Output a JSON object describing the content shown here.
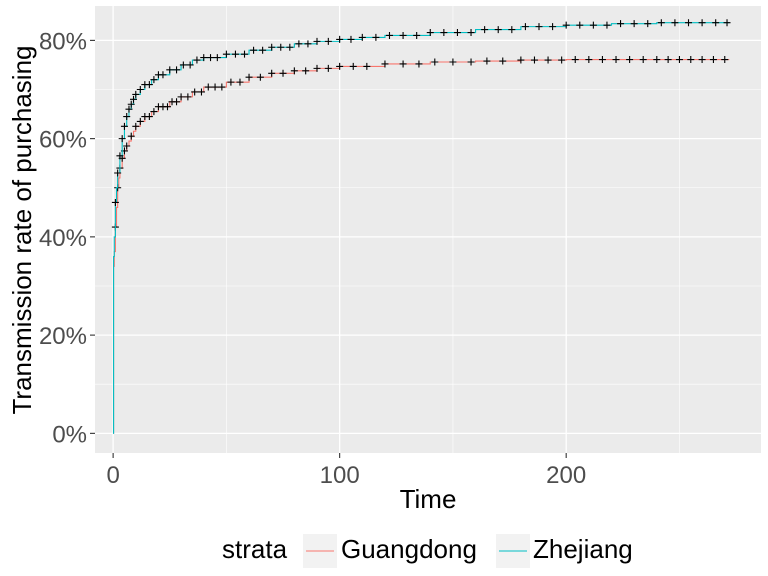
{
  "chart_data": {
    "type": "line",
    "title": "",
    "xlabel": "Time",
    "ylabel": "Transmission rate of purchasing",
    "xlim": [
      -8,
      286
    ],
    "ylim": [
      -4,
      87
    ],
    "x_ticks": [
      0,
      100,
      200
    ],
    "x_tick_labels": [
      "0",
      "100",
      "200"
    ],
    "y_ticks": [
      0,
      20,
      40,
      60,
      80
    ],
    "y_tick_labels": [
      "0%",
      "20%",
      "40%",
      "60%",
      "80%"
    ],
    "grid": true,
    "background": "#EBEBEB",
    "legend": {
      "title": "strata",
      "position": "bottom",
      "labels": [
        "Guangdong",
        "Zhejiang"
      ]
    },
    "series": [
      {
        "name": "Guangdong",
        "color": "#F8766D",
        "points": [
          [
            0,
            0
          ],
          [
            0.2,
            34
          ],
          [
            0.5,
            37
          ],
          [
            1,
            42
          ],
          [
            1.5,
            46
          ],
          [
            2,
            50
          ],
          [
            2.5,
            52
          ],
          [
            3,
            54
          ],
          [
            4,
            56
          ],
          [
            5,
            57.5
          ],
          [
            6,
            58.5
          ],
          [
            7,
            59.5
          ],
          [
            8,
            60.5
          ],
          [
            9,
            61.5
          ],
          [
            10,
            62.5
          ],
          [
            12,
            63.5
          ],
          [
            14,
            64.5
          ],
          [
            17,
            65.5
          ],
          [
            20,
            66.5
          ],
          [
            25,
            67.5
          ],
          [
            30,
            68.5
          ],
          [
            35,
            69.5
          ],
          [
            40,
            70.5
          ],
          [
            50,
            71.5
          ],
          [
            60,
            72.5
          ],
          [
            70,
            73.3
          ],
          [
            80,
            73.8
          ],
          [
            90,
            74.3
          ],
          [
            100,
            74.7
          ],
          [
            120,
            75.2
          ],
          [
            140,
            75.6
          ],
          [
            160,
            75.8
          ],
          [
            180,
            76.0
          ],
          [
            200,
            76.1
          ],
          [
            240,
            76.1
          ],
          [
            272,
            76.1
          ]
        ],
        "censor_times": [
          1,
          2,
          3,
          4,
          5,
          6,
          8,
          10,
          12,
          14,
          16,
          18,
          20,
          22,
          24,
          26,
          28,
          30,
          33,
          36,
          39,
          42,
          45,
          48,
          52,
          56,
          60,
          65,
          70,
          75,
          80,
          85,
          90,
          95,
          100,
          106,
          112,
          120,
          128,
          135,
          142,
          150,
          158,
          165,
          172,
          180,
          186,
          192,
          198,
          204,
          210,
          216,
          222,
          228,
          234,
          240,
          245,
          250,
          255,
          260,
          265,
          270
        ]
      },
      {
        "name": "Zhejiang",
        "color": "#00BFC4",
        "points": [
          [
            0,
            0
          ],
          [
            0.2,
            36
          ],
          [
            0.5,
            40
          ],
          [
            1,
            47
          ],
          [
            1.5,
            50
          ],
          [
            2,
            53
          ],
          [
            3,
            56.5
          ],
          [
            4,
            60
          ],
          [
            5,
            62.5
          ],
          [
            6,
            64.5
          ],
          [
            7,
            66
          ],
          [
            8,
            67
          ],
          [
            9,
            68
          ],
          [
            10,
            69
          ],
          [
            12,
            70
          ],
          [
            14,
            71
          ],
          [
            17,
            72
          ],
          [
            20,
            73
          ],
          [
            25,
            74
          ],
          [
            30,
            75
          ],
          [
            35,
            76
          ],
          [
            40,
            76.5
          ],
          [
            50,
            77.2
          ],
          [
            60,
            78
          ],
          [
            70,
            78.6
          ],
          [
            80,
            79.3
          ],
          [
            90,
            79.8
          ],
          [
            100,
            80.2
          ],
          [
            110,
            80.6
          ],
          [
            120,
            81
          ],
          [
            140,
            81.6
          ],
          [
            160,
            82.2
          ],
          [
            180,
            82.8
          ],
          [
            200,
            83.1
          ],
          [
            220,
            83.4
          ],
          [
            240,
            83.6
          ],
          [
            272,
            83.6
          ]
        ],
        "censor_times": [
          1,
          2,
          3,
          4,
          5,
          6,
          7,
          8,
          9,
          10,
          12,
          14,
          16,
          18,
          20,
          22,
          25,
          28,
          31,
          34,
          37,
          40,
          43,
          46,
          50,
          54,
          58,
          62,
          66,
          70,
          74,
          78,
          82,
          86,
          90,
          95,
          100,
          105,
          110,
          116,
          122,
          128,
          134,
          140,
          146,
          152,
          158,
          164,
          170,
          176,
          182,
          188,
          194,
          200,
          206,
          212,
          218,
          224,
          230,
          236,
          242,
          248,
          254,
          260,
          266,
          271
        ]
      }
    ]
  }
}
